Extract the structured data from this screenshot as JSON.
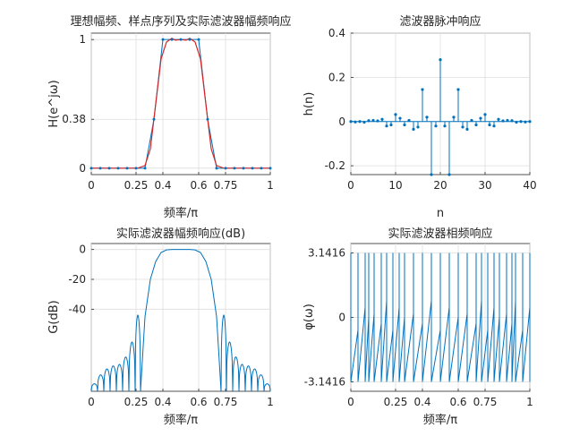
{
  "colors": {
    "blue": "#0072BD",
    "red": "#D62728",
    "axis": "#262626",
    "grid": "#dedede"
  },
  "chart_data": [
    {
      "type": "line",
      "title": "理想幅频、样点序列及实际滤波器幅频响应",
      "xlabel": "频率/π",
      "ylabel": "H(e^jω)",
      "xlim": [
        0,
        1
      ],
      "ylim": [
        -0.05,
        1.05
      ],
      "xticks": [
        0,
        0.25,
        0.4,
        0.6,
        0.75,
        1
      ],
      "xtick_labels": [
        "0",
        "0.25",
        "0.4",
        "0.6",
        "0.75",
        "1"
      ],
      "yticks": [
        0,
        0.38,
        1
      ],
      "ytick_labels": [
        "0",
        "0.38",
        "1"
      ],
      "grid": true,
      "series": [
        {
          "kind": "ideal-with-samples",
          "color": "#0072BD",
          "x": [
            0,
            0.05,
            0.1,
            0.15,
            0.2,
            0.25,
            0.3,
            0.35,
            0.4,
            0.45,
            0.5,
            0.55,
            0.6,
            0.65,
            0.7,
            0.75,
            0.8,
            0.85,
            0.9,
            0.95,
            1
          ],
          "y": [
            0,
            0,
            0,
            0,
            0,
            0,
            0,
            0.38,
            1,
            1,
            1,
            1,
            1,
            0.38,
            0,
            0,
            0,
            0,
            0,
            0,
            0
          ]
        },
        {
          "kind": "actual-response",
          "color": "#D62728",
          "x": [
            0,
            0.26,
            0.3,
            0.33,
            0.36,
            0.39,
            0.42,
            0.45,
            0.47,
            0.5,
            0.53,
            0.55,
            0.58,
            0.61,
            0.64,
            0.67,
            0.7,
            0.74,
            1
          ],
          "y": [
            0,
            0,
            0.02,
            0.15,
            0.5,
            0.85,
            0.98,
            1.01,
            0.995,
            1.0,
            0.995,
            1.01,
            0.98,
            0.85,
            0.5,
            0.15,
            0.02,
            0,
            0
          ]
        }
      ]
    },
    {
      "type": "stem",
      "title": "滤波器脉冲响应",
      "xlabel": "n",
      "ylabel": "h(n)",
      "xlim": [
        0,
        40
      ],
      "ylim": [
        -0.24,
        0.4
      ],
      "xticks": [
        0,
        10,
        20,
        30,
        40
      ],
      "yticks": [
        -0.2,
        0,
        0.2,
        0.4
      ],
      "ytick_labels": [
        "-0.2",
        "0",
        "0.2",
        "0.4"
      ],
      "grid": true,
      "series": [
        {
          "color": "#0072BD",
          "n": [
            0,
            1,
            2,
            3,
            4,
            5,
            6,
            7,
            8,
            9,
            10,
            11,
            12,
            13,
            14,
            15,
            16,
            17,
            18,
            19,
            20,
            21,
            22,
            23,
            24,
            25,
            26,
            27,
            28,
            29,
            30,
            31,
            32,
            33,
            34,
            35,
            36,
            37,
            38,
            39,
            40
          ],
          "h": [
            0,
            -0.002,
            0,
            -0.003,
            0.004,
            0.005,
            0.003,
            0.01,
            -0.02,
            -0.015,
            0.032,
            0.015,
            -0.015,
            0.005,
            -0.035,
            -0.025,
            0.145,
            0.02,
            -0.24,
            -0.02,
            0.28,
            -0.02,
            -0.24,
            0.02,
            0.145,
            -0.025,
            -0.035,
            0.005,
            -0.015,
            0.015,
            0.032,
            -0.015,
            -0.02,
            0.01,
            0.003,
            0.005,
            0.004,
            -0.003,
            0,
            -0.002,
            0
          ]
        }
      ]
    },
    {
      "type": "line",
      "title": "实际滤波器幅频响应(dB)",
      "xlabel": "频率/π",
      "ylabel": "G(dB)",
      "xlim": [
        0,
        1
      ],
      "ylim": [
        -95,
        4
      ],
      "xticks": [
        0,
        0.25,
        0.4,
        0.6,
        0.75,
        1
      ],
      "xtick_labels": [
        "0",
        "0.25",
        "0.4",
        "0.6",
        "0.75",
        "1"
      ],
      "yticks": [
        0,
        -20,
        -40
      ],
      "ytick_labels": [
        "0",
        "-20",
        "-40"
      ],
      "grid": true,
      "series": [
        {
          "color": "#0072BD",
          "lobes": [
            {
              "from": 0.0,
              "to": 0.035,
              "peak": -90
            },
            {
              "from": 0.035,
              "to": 0.07,
              "peak": -84
            },
            {
              "from": 0.07,
              "to": 0.105,
              "peak": -80
            },
            {
              "from": 0.105,
              "to": 0.14,
              "peak": -78
            },
            {
              "from": 0.14,
              "to": 0.175,
              "peak": -77
            },
            {
              "from": 0.175,
              "to": 0.21,
              "peak": -72
            },
            {
              "from": 0.21,
              "to": 0.245,
              "peak": -62
            },
            {
              "from": 0.245,
              "to": 0.275,
              "peak": -44
            },
            {
              "from": 0.725,
              "to": 0.755,
              "peak": -44
            },
            {
              "from": 0.755,
              "to": 0.79,
              "peak": -62
            },
            {
              "from": 0.79,
              "to": 0.825,
              "peak": -72
            },
            {
              "from": 0.825,
              "to": 0.86,
              "peak": -77
            },
            {
              "from": 0.86,
              "to": 0.895,
              "peak": -78
            },
            {
              "from": 0.895,
              "to": 0.93,
              "peak": -80
            },
            {
              "from": 0.93,
              "to": 0.965,
              "peak": -84
            },
            {
              "from": 0.965,
              "to": 1.0,
              "peak": -90
            }
          ],
          "passband_x": [
            0.275,
            0.3,
            0.33,
            0.36,
            0.39,
            0.42,
            0.45,
            0.5,
            0.55,
            0.58,
            0.61,
            0.64,
            0.67,
            0.7,
            0.725
          ],
          "passband_y": [
            -95,
            -45,
            -20,
            -8,
            -2,
            -0.3,
            0,
            0,
            0,
            -0.3,
            -2,
            -8,
            -20,
            -45,
            -95
          ]
        }
      ]
    },
    {
      "type": "line",
      "title": "实际滤波器相频响应",
      "xlabel": "频率/π",
      "ylabel": "φ(ω)",
      "xlim": [
        0,
        1
      ],
      "ylim": [
        -3.6,
        3.6
      ],
      "xticks": [
        0,
        0.25,
        0.4,
        0.6,
        0.75,
        1
      ],
      "xtick_labels": [
        "0",
        "0.25",
        "0.4",
        "0.6",
        "0.75",
        "1"
      ],
      "yticks": [
        -3.1416,
        0,
        3.1416
      ],
      "ytick_labels": [
        "-3.1416",
        "0",
        "3.1416"
      ],
      "grid": true,
      "series": [
        {
          "color": "#0072BD",
          "wrap_points": [
            0.0,
            0.04,
            0.08,
            0.1,
            0.13,
            0.17,
            0.2,
            0.235,
            0.27,
            0.3,
            0.35,
            0.4,
            0.45,
            0.5,
            0.55,
            0.6,
            0.65,
            0.7,
            0.73,
            0.765,
            0.8,
            0.83,
            0.87,
            0.9,
            0.92,
            0.96,
            1.0
          ]
        }
      ]
    }
  ]
}
